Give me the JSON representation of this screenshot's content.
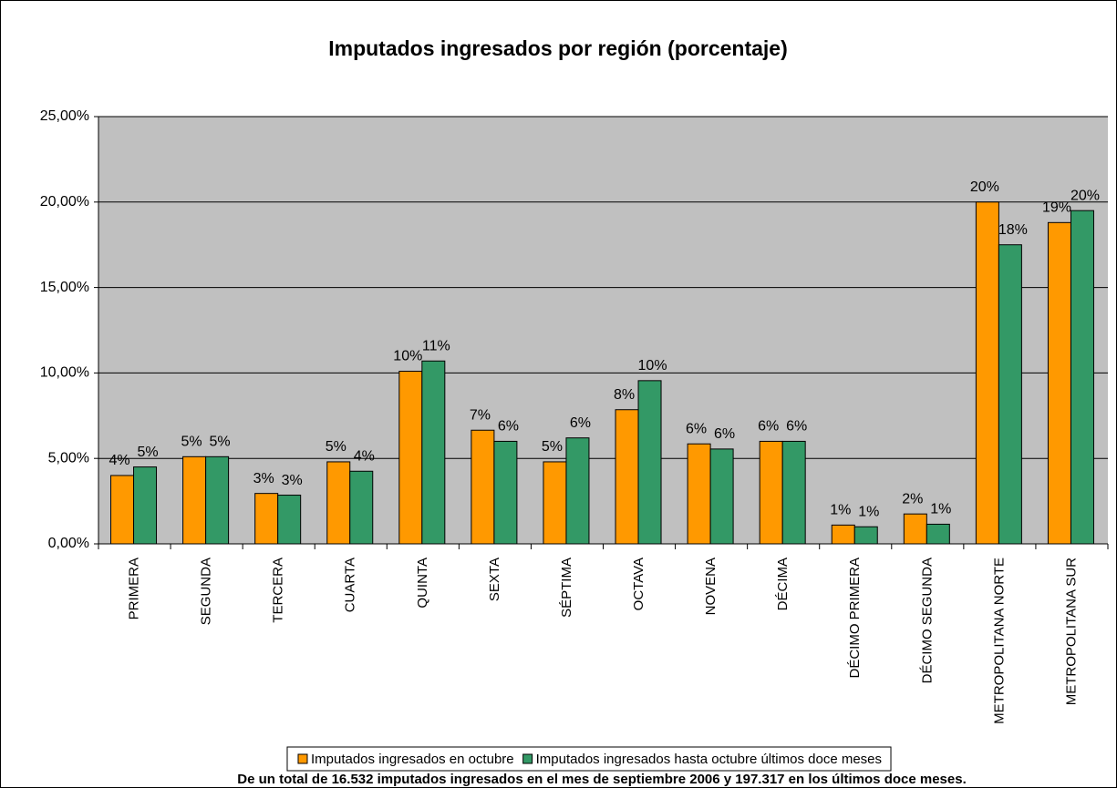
{
  "chart_data": {
    "type": "bar",
    "title": "Imputados ingresados por región (porcentaje)",
    "footnote": "De un total de 16.532 imputados ingresados en el mes de septiembre 2006 y 197.317 en los últimos doce meses.",
    "categories": [
      "PRIMERA",
      "SEGUNDA",
      "TERCERA",
      "CUARTA",
      "QUINTA",
      "SEXTA",
      "SÉPTIMA",
      "OCTAVA",
      "NOVENA",
      "DÉCIMA",
      "DÉCIMO PRIMERA",
      "DÉCIMO SEGUNDA",
      "METROPOLITANA NORTE",
      "METROPOLITANA SUR"
    ],
    "series": [
      {
        "name": "Imputados ingresados en octubre",
        "color": "#ff9900",
        "values": [
          4.0,
          5.1,
          2.95,
          4.8,
          10.1,
          6.65,
          4.8,
          7.85,
          5.85,
          6.0,
          1.1,
          1.75,
          20.0,
          18.8
        ],
        "value_labels": [
          "4%",
          "5%",
          "3%",
          "5%",
          "10%",
          "7%",
          "5%",
          "8%",
          "6%",
          "6%",
          "1%",
          "2%",
          "20%",
          "19%"
        ]
      },
      {
        "name": "Imputados ingresados hasta octubre últimos doce meses",
        "color": "#339966",
        "values": [
          4.5,
          5.1,
          2.85,
          4.25,
          10.7,
          6.0,
          6.2,
          9.55,
          5.55,
          6.0,
          1.0,
          1.15,
          17.5,
          19.5
        ],
        "value_labels": [
          "5%",
          "5%",
          "3%",
          "4%",
          "11%",
          "6%",
          "6%",
          "10%",
          "6%",
          "6%",
          "1%",
          "1%",
          "18%",
          "20%"
        ]
      }
    ],
    "ylim": [
      0,
      25
    ],
    "yticks": [
      {
        "value": 0,
        "label": "0,00%"
      },
      {
        "value": 5,
        "label": "5,00%"
      },
      {
        "value": 10,
        "label": "10,00%"
      },
      {
        "value": 15,
        "label": "15,00%"
      },
      {
        "value": 20,
        "label": "20,00%"
      },
      {
        "value": 25,
        "label": "25,00%"
      }
    ],
    "grid": true,
    "legend": "bottom"
  }
}
